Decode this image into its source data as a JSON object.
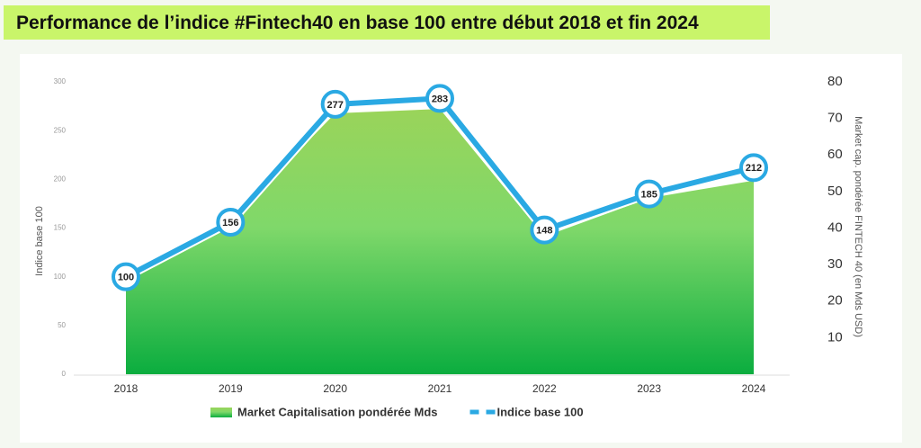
{
  "chart_data": {
    "type": "combo",
    "title": "Performance de l’indice #Fintech40 en base 100 entre début 2018 et fin 2024",
    "categories": [
      "2018",
      "2019",
      "2020",
      "2021",
      "2022",
      "2023",
      "2024"
    ],
    "series": [
      {
        "name": "Market Capitalisation pondérée Mds",
        "type": "area",
        "axis": "y2",
        "color": "#0bad3f",
        "values": [
          26.2,
          42,
          71.4,
          72.6,
          37.7,
          48.2,
          53
        ]
      },
      {
        "name": "Indice base 100",
        "type": "line",
        "color": "#2aa9e3",
        "values": [
          100,
          156,
          277,
          283,
          148,
          185,
          212
        ]
      }
    ],
    "y_label": "Indice base 100",
    "y2_label": "Market cap. pondérée FINTECH 40 (en Mds USD)",
    "ylim": [
      0,
      300
    ],
    "yticks": [
      0,
      50,
      100,
      150,
      200,
      250,
      300
    ],
    "y2lim": [
      0,
      80
    ],
    "y2ticks": [
      10,
      20,
      30,
      40,
      50,
      60,
      70,
      80
    ],
    "grid": false,
    "legend": "bottom"
  }
}
